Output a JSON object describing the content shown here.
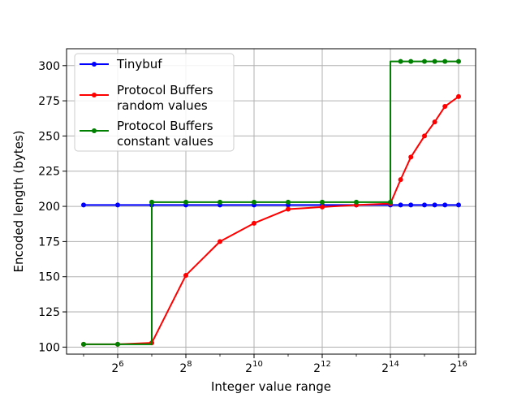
{
  "chart_data": {
    "type": "line",
    "xlabel": "Integer value range",
    "ylabel": "Encoded length (bytes)",
    "x_scale": "log2",
    "xlim": [
      4.5,
      16.5
    ],
    "ylim": [
      95,
      312
    ],
    "grid": true,
    "legend_position": "top-left",
    "x_ticks": [
      {
        "base": "2",
        "exp": "6",
        "value": 6
      },
      {
        "base": "2",
        "exp": "8",
        "value": 8
      },
      {
        "base": "2",
        "exp": "10",
        "value": 10
      },
      {
        "base": "2",
        "exp": "12",
        "value": 12
      },
      {
        "base": "2",
        "exp": "14",
        "value": 14
      },
      {
        "base": "2",
        "exp": "16",
        "value": 16
      }
    ],
    "y_ticks": [
      {
        "label": "100",
        "value": 100
      },
      {
        "label": "125",
        "value": 125
      },
      {
        "label": "150",
        "value": 150
      },
      {
        "label": "175",
        "value": 175
      },
      {
        "label": "200",
        "value": 200
      },
      {
        "label": "225",
        "value": 225
      },
      {
        "label": "250",
        "value": 250
      },
      {
        "label": "275",
        "value": 275
      },
      {
        "label": "300",
        "value": 300
      }
    ],
    "series": [
      {
        "name": "Tinybuf",
        "color": "#0000ff",
        "x": [
          5,
          6,
          7,
          8,
          9,
          10,
          11,
          12,
          13,
          14,
          14.3,
          14.6,
          15,
          15.3,
          15.6,
          16
        ],
        "y": [
          201,
          201,
          201,
          201,
          201,
          201,
          201,
          201,
          201,
          201,
          201,
          201,
          201,
          201,
          201,
          201
        ]
      },
      {
        "name": "Protocol Buffers\nrandom values",
        "color": "#ff0000",
        "x": [
          5,
          6,
          7,
          8,
          9,
          10,
          11,
          12,
          13,
          14,
          14.3,
          14.6,
          15,
          15.3,
          15.6,
          16
        ],
        "y": [
          102,
          102,
          103,
          151,
          175,
          188,
          198,
          199.5,
          201,
          202,
          219,
          235,
          250,
          260,
          271,
          278
        ]
      },
      {
        "name": "Protocol Buffers\nconstant values",
        "color": "#008000",
        "step": true,
        "x": [
          5,
          6,
          7,
          7,
          8,
          9,
          10,
          11,
          12,
          13,
          14,
          14,
          14.3,
          14.6,
          15,
          15.3,
          15.6,
          16
        ],
        "y": [
          102,
          102,
          102,
          203,
          203,
          203,
          203,
          203,
          203,
          203,
          203,
          303,
          303,
          303,
          303,
          303,
          303,
          303
        ],
        "markers": [
          true,
          true,
          false,
          true,
          true,
          true,
          true,
          true,
          true,
          true,
          true,
          false,
          true,
          true,
          true,
          true,
          true,
          true
        ]
      }
    ]
  }
}
